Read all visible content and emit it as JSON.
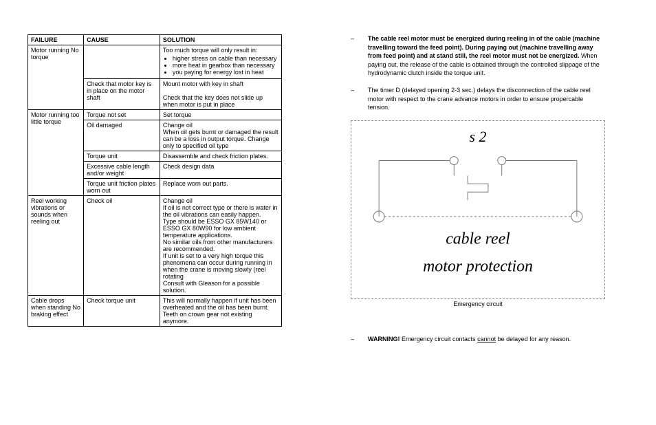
{
  "table": {
    "headers": [
      "FAILURE",
      "CAUSE",
      "SOLUTION"
    ],
    "rows": [
      {
        "failure": "Motor running No torque",
        "failure_rowspan": 2,
        "cause": "",
        "solution_intro": "Too much torque will only result in:",
        "solution_bullets": [
          "higher stress on cable than necessary",
          "more heat in gearbox than necessary",
          "you paying for energy lost in heat"
        ]
      },
      {
        "cause": "Check that motor key is in place on the motor shaft",
        "solution": "Mount motor with key in shaft\n\nCheck that the key does not slide up when motor is put in place"
      },
      {
        "failure": "Motor running too little torque",
        "failure_rowspan": 5,
        "cause": "Torque not set",
        "solution": "Set torque"
      },
      {
        "cause": "Oil damaged",
        "solution": "Change oil\nWhen oil gets burnt or damaged the result can be a loss in output torque. Change only to specified oil type"
      },
      {
        "cause": "Torque unit",
        "solution": "Disassemble and check friction plates."
      },
      {
        "cause": "Excessive cable length and/or weight",
        "solution": "Check design data"
      },
      {
        "cause": "Torque unit friction plates worn out",
        "solution": "Replace worn out parts."
      },
      {
        "failure": "Reel working vibrations or sounds when reeling out",
        "failure_rowspan": 1,
        "cause": "Check oil",
        "solution": "Change oil\nIf oil is not correct type or there is water in the oil vibrations can easily happen.\nType should be ESSO GX 85W140 or ESSO GX 80W90 for low ambient temperature applications.\nNo similar oils from other manufacturers are recommended.\nIf unit is set to a very high torque this phenomena can occur during running in when the crane is moving slowly (reel rotating\nConsult with Gleason for a possible solution."
      },
      {
        "failure": "Cable drops when standing No braking effect",
        "failure_rowspan": 1,
        "cause": "Check torque unit",
        "solution": "This will normally happen if unit has been overheated and the oil has been burnt.\nTeeth on crown gear not existing anymore."
      }
    ]
  },
  "right": {
    "bullets": [
      {
        "bold": true,
        "text": "The cable reel motor must be energized during reeling in of the cable (machine travelling toward the feed point). During paying out (machine travelling away from feed point) and at stand still, the reel motor must not be energized.",
        "tail": " When paying out, the release of the cable is obtained through the controlled slippage of the hydrodynamic clutch inside the torque unit."
      },
      {
        "bold": false,
        "text": "The timer D (delayed opening 2-3 sec.) delays the disconnection of the cable reel motor with respect to the crane advance motors in order to ensure propercable tension."
      }
    ],
    "diagram": {
      "label_s2": "s 2",
      "label_line1": "cable reel",
      "label_line2": "motor protection",
      "caption": "Emergency circuit",
      "stroke": "#777",
      "dash": "4,3"
    },
    "warning_prefix": "WARNING!",
    "warning_mid": " Emergency circuit contacts ",
    "warning_underline": "cannot",
    "warning_suffix": " be delayed for any reason."
  }
}
